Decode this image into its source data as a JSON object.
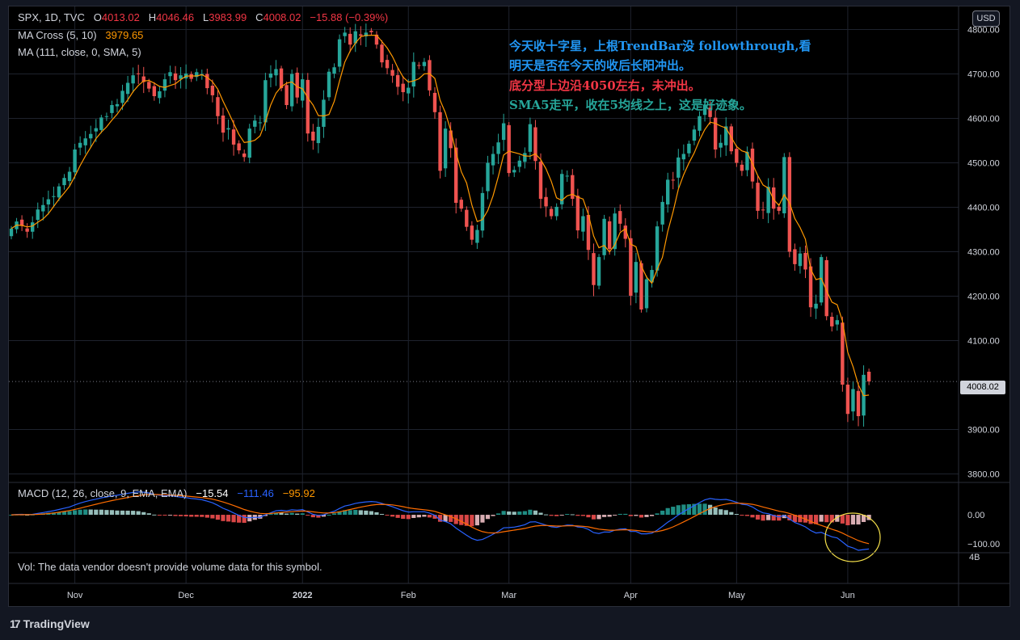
{
  "legend": {
    "symbol": "SPX, 1D, TVC",
    "o_label": "O",
    "o": "4013.02",
    "h_label": "H",
    "h": "4046.46",
    "l_label": "L",
    "l": "3983.99",
    "c_label": "C",
    "c": "4008.02",
    "change": "−15.88 (−0.39%)",
    "ma_cross_label": "MA Cross (5, 10)",
    "ma_cross_value": "3979.65",
    "ma_label": "MA (111, close, 0, SMA, 5)"
  },
  "annotations": [
    {
      "text": "今天收十字星，上根TrendBar没 followthrough,看",
      "color": "#2196f3"
    },
    {
      "text": "明天是否在今天的收后长阳冲出。",
      "color": "#2196f3"
    },
    {
      "text": "底分型上边沿4050左右，未冲出。",
      "color": "#f23645"
    },
    {
      "text": "SMA5走平，收在5均线之上，这是好迹象。",
      "color": "#26a69a"
    }
  ],
  "currency_badge": "USD",
  "last_price_tag": "4008.02",
  "macd_legend": {
    "label": "MACD (12, 26, close, 9, EMA, EMA)",
    "hist": "−15.54",
    "macd": "−111.46",
    "signal": "−95.92"
  },
  "vol_note": "Vol: The data vendor doesn't provide volume data for this symbol.",
  "footer_brand": "TradingView",
  "colors": {
    "up": "#26a69a",
    "down": "#ef5350",
    "ma": "#ff9800",
    "macd_line": "#2962ff",
    "signal_line": "#ff6d00",
    "grid": "#1e222d"
  },
  "chart_data": {
    "type": "candlestick",
    "price_axis": {
      "ticks": [
        "4800.00",
        "4700.00",
        "4600.00",
        "4500.00",
        "4400.00",
        "4300.00",
        "4200.00",
        "4100.00",
        "3900.00",
        "3800.00"
      ],
      "ylim": [
        3790,
        4830
      ]
    },
    "macd_axis": {
      "ticks": [
        "0.00",
        "−100.00"
      ],
      "ylim": [
        -120,
        70
      ]
    },
    "vol_axis_tick": "4B",
    "time_axis": {
      "labels": [
        {
          "label": "Nov",
          "index": 12
        },
        {
          "label": "Dec",
          "index": 33
        },
        {
          "label": "2022",
          "index": 55
        },
        {
          "label": "Feb",
          "index": 75
        },
        {
          "label": "Mar",
          "index": 94
        },
        {
          "label": "Apr",
          "index": 117
        },
        {
          "label": "May",
          "index": 137
        },
        {
          "label": "Jun",
          "index": 158
        }
      ]
    },
    "close": [
      4352,
      4368,
      4358,
      4345,
      4366,
      4395,
      4405,
      4418,
      4425,
      4447,
      4466,
      4480,
      4530,
      4545,
      4555,
      4565,
      4578,
      4602,
      4605,
      4630,
      4632,
      4662,
      4680,
      4697,
      4700,
      4682,
      4667,
      4650,
      4661,
      4688,
      4704,
      4686,
      4697,
      4701,
      4689,
      4704,
      4700,
      4668,
      4652,
      4605,
      4568,
      4578,
      4541,
      4528,
      4513,
      4577,
      4595,
      4591,
      4686,
      4701,
      4711,
      4668,
      4630,
      4700,
      4647,
      4688,
      4566,
      4550,
      4581,
      4642,
      4705,
      4715,
      4778,
      4793,
      4766,
      4796,
      4786,
      4793,
      4794,
      4766,
      4726,
      4713,
      4696,
      4671,
      4659,
      4669,
      4727,
      4719,
      4727,
      4663,
      4614,
      4482,
      4577,
      4533,
      4410,
      4397,
      4356,
      4327,
      4349,
      4432,
      4500,
      4520,
      4546,
      4589,
      4477,
      4484,
      4505,
      4522,
      4587,
      4504,
      4419,
      4402,
      4380,
      4401,
      4475,
      4471,
      4419,
      4348,
      4380,
      4304,
      4225,
      4288,
      4374,
      4306,
      4386,
      4363,
      4329,
      4201,
      4277,
      4170,
      4238,
      4259,
      4357,
      4412,
      4462,
      4461,
      4512,
      4520,
      4543,
      4575,
      4605,
      4631,
      4603,
      4530,
      4545,
      4582,
      4526,
      4500,
      4482,
      4525,
      4458,
      4392,
      4394,
      4446,
      4397,
      4392,
      4513,
      4300,
      4272,
      4296,
      4260,
      4175,
      4183,
      4288,
      4155,
      4132,
      4146,
      4001,
      3935,
      3991,
      3930,
      4023,
      4008
    ],
    "ma_cross_last": 3979.65,
    "macd_last": {
      "macd": -111.46,
      "signal": -95.92,
      "hist": -15.54
    }
  }
}
